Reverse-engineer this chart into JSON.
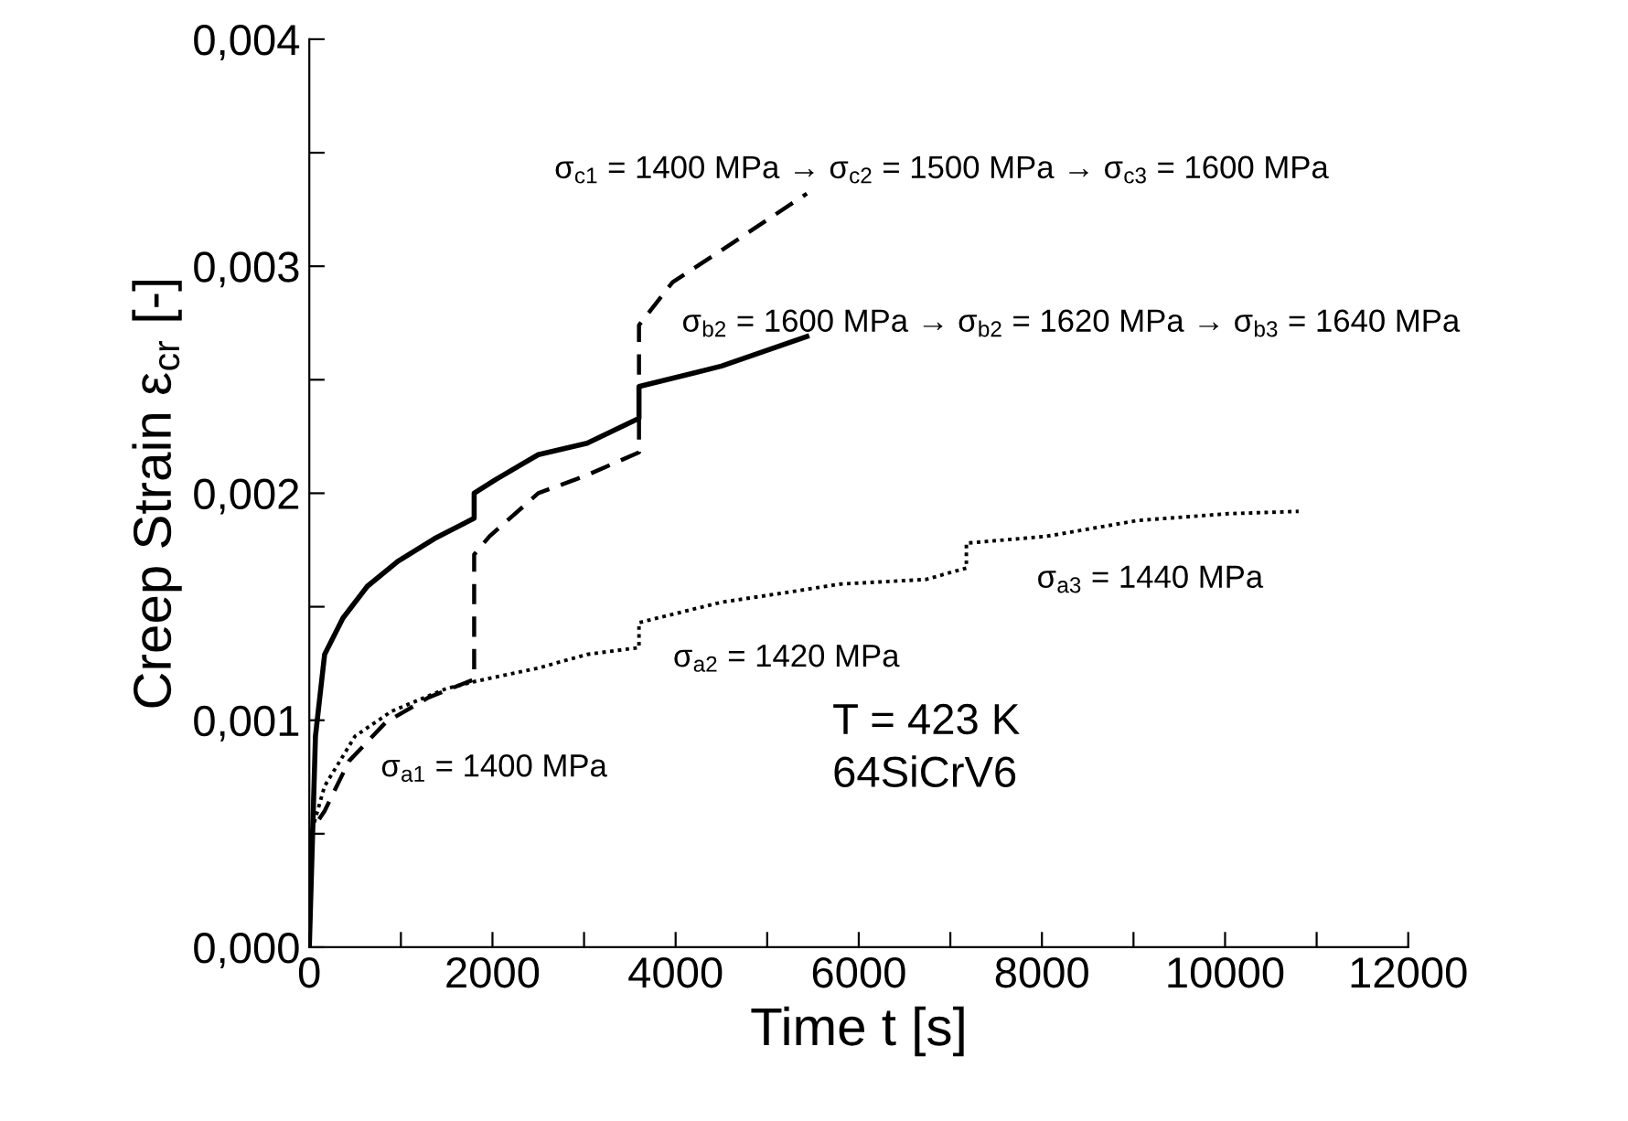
{
  "chart_data": {
    "type": "line",
    "xlabel": "Time t [s]",
    "ylabel": "Creep Strain ε$_{cr}$ [-]",
    "xlim": [
      0,
      12000
    ],
    "ylim": [
      0,
      0.004
    ],
    "xticks": [
      0,
      {
        "value": 1000,
        "label": null
      },
      2000,
      {
        "value": 3000,
        "label": null
      },
      4000,
      {
        "value": 5000,
        "label": null
      },
      6000,
      {
        "value": 7000,
        "label": null
      },
      8000,
      {
        "value": 9000,
        "label": null
      },
      10000,
      {
        "value": 11000,
        "label": null
      },
      12000
    ],
    "yticks": [
      {
        "value": 0,
        "label": "0,000"
      },
      {
        "value": 0.0005,
        "label": null
      },
      {
        "value": 0.001,
        "label": "0,001"
      },
      {
        "value": 0.0015,
        "label": null
      },
      {
        "value": 0.002,
        "label": "0,002"
      },
      {
        "value": 0.0025,
        "label": null
      },
      {
        "value": 0.003,
        "label": "0,003"
      },
      {
        "value": 0.0035,
        "label": null
      },
      {
        "value": 0.004,
        "label": "0,004"
      }
    ],
    "grid": false,
    "legend": false,
    "series": [
      {
        "color": "#000000",
        "line_style": "solid",
        "x": [
          0,
          67,
          167,
          367,
          633,
          967,
          1367,
          1800,
          1800,
          2033,
          2500,
          3033,
          3600,
          3600,
          3700,
          4500,
          5433
        ],
        "values": [
          0,
          0.00093,
          0.00129,
          0.00145,
          0.00159,
          0.0017,
          0.0018,
          0.00189,
          0.002,
          0.00206,
          0.00217,
          0.00222,
          0.00233,
          0.00247,
          0.00248,
          0.00256,
          0.00269
        ]
      },
      {
        "color": "#000000",
        "line_style": "dashed",
        "x": [
          0,
          33,
          167,
          433,
          833,
          1300,
          1800,
          1800,
          1967,
          2500,
          3033,
          3600,
          3600,
          3967,
          4500,
          5433
        ],
        "values": [
          0,
          0.00052,
          0.0006,
          0.00082,
          0.00099,
          0.0011,
          0.00118,
          0.00173,
          0.00181,
          0.002,
          0.00208,
          0.00218,
          0.00274,
          0.00293,
          0.00307,
          0.00332
        ]
      },
      {
        "color": "#000000",
        "line_style": "dotted",
        "x": [
          0,
          33,
          167,
          500,
          900,
          1500,
          1800,
          2500,
          3033,
          3600,
          3600,
          4500,
          5167,
          5800,
          6727,
          7175,
          7175,
          8046,
          9046,
          10040,
          10803
        ],
        "values": [
          0,
          0.00052,
          0.00071,
          0.00093,
          0.00104,
          0.00114,
          0.00117,
          0.00123,
          0.00129,
          0.00132,
          0.00143,
          0.00152,
          0.00156,
          0.0016,
          0.00162,
          0.00167,
          0.00178,
          0.00181,
          0.00188,
          0.00191,
          0.00192
        ]
      }
    ],
    "annotations": [
      "σ$_{c1}$ = 1400 MPa → σ$_{c2}$ = 1500 MPa → σ$_{c3}$ = 1600 MPa",
      "σ$_{b2}$ = 1600 MPa → σ$_{b2}$ = 1620 MPa → σ$_{b3}$ = 1640 MPa",
      "σ$_{a1}$ = 1400 MPa",
      "σ$_{a2}$ = 1420 MPa",
      "σ$_{a3}$ = 1440 MPa",
      "T = 423 K\n64SiCrV6"
    ]
  }
}
